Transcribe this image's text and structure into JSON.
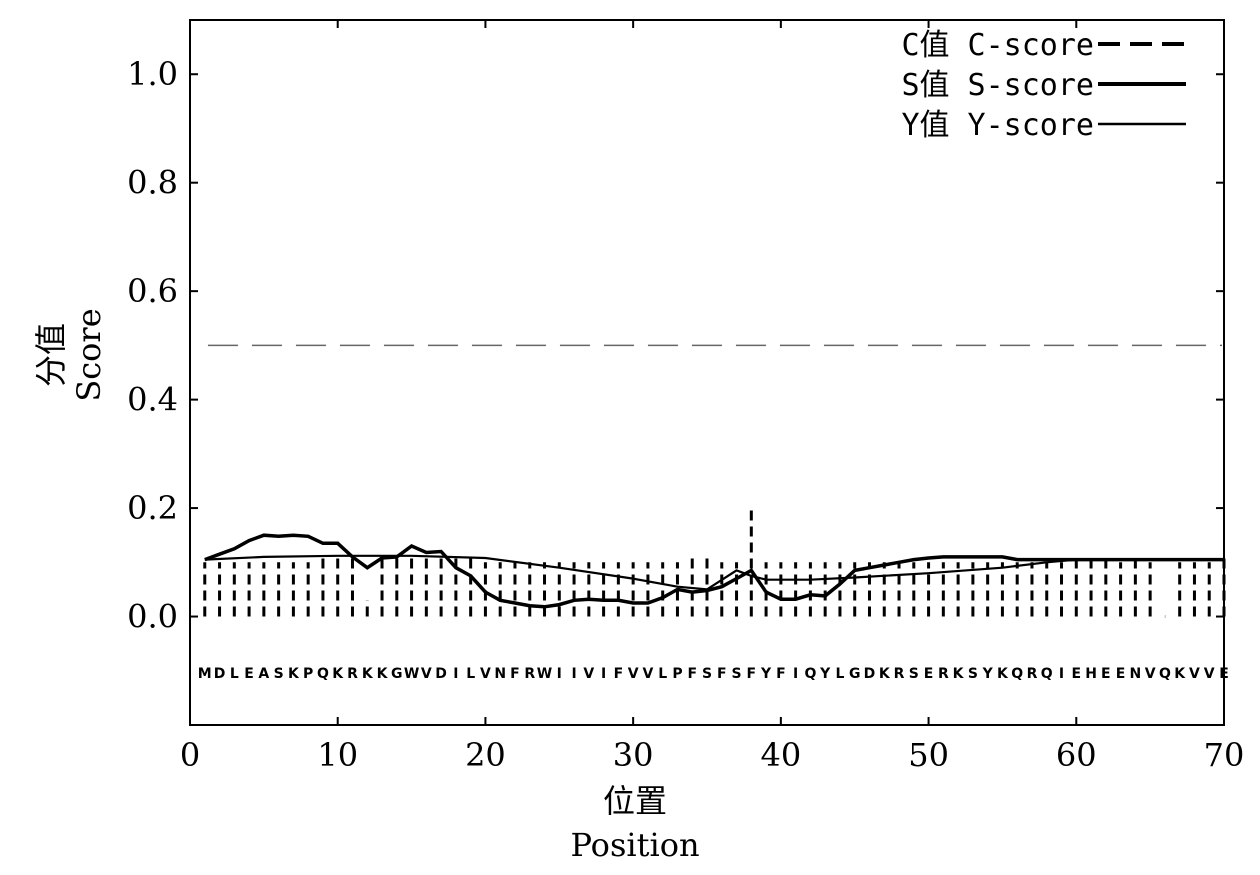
{
  "chart_data": {
    "type": "line",
    "xlabel_cn": "位置",
    "xlabel_en": "Position",
    "ylabel_cn": "分值",
    "ylabel_en": "Score",
    "xlim": [
      0,
      70
    ],
    "ylim": [
      -0.2,
      1.1
    ],
    "xticks": [
      0,
      10,
      20,
      30,
      40,
      50,
      60,
      70
    ],
    "xtick_labels": [
      "0",
      "10",
      "20",
      "30",
      "40",
      "50",
      "60",
      "70"
    ],
    "yticks": [
      0.0,
      0.2,
      0.4,
      0.6,
      0.8,
      1.0
    ],
    "ytick_labels": [
      "0.0",
      "0.2",
      "0.4",
      "0.6",
      "0.8",
      "1.0"
    ],
    "threshold": 0.5,
    "legend_position": "top-right",
    "legend": [
      {
        "label": "C值 C-score",
        "style": "dashed"
      },
      {
        "label": "S值 S-score",
        "style": "solid"
      },
      {
        "label": "Y值 Y-score",
        "style": "solid-thin"
      }
    ],
    "sequence": [
      "M",
      "D",
      "L",
      "E",
      "A",
      "S",
      "K",
      "P",
      "Q",
      "K",
      "R",
      "K",
      "K",
      "G",
      "W",
      "V",
      "D",
      "I",
      "L",
      "V",
      "N",
      "F",
      "R",
      "W",
      "I",
      "I",
      "V",
      "I",
      "F",
      "V",
      "V",
      "L",
      "P",
      "F",
      "S",
      "F",
      "S",
      "F",
      "Y",
      "F",
      "I",
      "Q",
      "Y",
      "L",
      "G",
      "D",
      "K",
      "R",
      "S",
      "E",
      "R",
      "K",
      "S",
      "Y",
      "K",
      "Q",
      "R",
      "Q",
      "I",
      "E",
      "H",
      "E",
      "E",
      "N",
      "V",
      "Q",
      "K",
      "V",
      "V",
      "E"
    ],
    "c_score": [
      0.1,
      0.1,
      0.1,
      0.1,
      0.1,
      0.1,
      0.1,
      0.1,
      0.11,
      0.11,
      0.11,
      0.03,
      0.11,
      0.11,
      0.11,
      0.11,
      0.11,
      0.11,
      0.11,
      0.1,
      0.1,
      0.1,
      0.1,
      0.1,
      0.1,
      0.1,
      0.1,
      0.1,
      0.1,
      0.1,
      0.1,
      0.1,
      0.1,
      0.11,
      0.11,
      0.1,
      0.1,
      0.2,
      0.1,
      0.1,
      0.1,
      0.1,
      0.1,
      0.1,
      0.1,
      0.1,
      0.1,
      0.1,
      0.1,
      0.1,
      0.1,
      0.1,
      0.1,
      0.1,
      0.1,
      0.1,
      0.1,
      0.1,
      0.1,
      0.11,
      0.11,
      0.11,
      0.1,
      0.11,
      0.1,
      0.0,
      0.1,
      0.1,
      0.1,
      0.11
    ],
    "s_score": [
      [
        1,
        0.105
      ],
      [
        2,
        0.115
      ],
      [
        3,
        0.125
      ],
      [
        4,
        0.14
      ],
      [
        5,
        0.15
      ],
      [
        6,
        0.148
      ],
      [
        7,
        0.15
      ],
      [
        8,
        0.148
      ],
      [
        9,
        0.135
      ],
      [
        10,
        0.135
      ],
      [
        11,
        0.11
      ],
      [
        12,
        0.09
      ],
      [
        13,
        0.108
      ],
      [
        14,
        0.11
      ],
      [
        15,
        0.13
      ],
      [
        16,
        0.118
      ],
      [
        17,
        0.12
      ],
      [
        18,
        0.09
      ],
      [
        19,
        0.075
      ],
      [
        20,
        0.045
      ],
      [
        21,
        0.03
      ],
      [
        22,
        0.025
      ],
      [
        23,
        0.02
      ],
      [
        24,
        0.018
      ],
      [
        25,
        0.022
      ],
      [
        26,
        0.03
      ],
      [
        27,
        0.032
      ],
      [
        28,
        0.03
      ],
      [
        29,
        0.03
      ],
      [
        30,
        0.025
      ],
      [
        31,
        0.025
      ],
      [
        32,
        0.035
      ],
      [
        33,
        0.05
      ],
      [
        34,
        0.045
      ],
      [
        35,
        0.048
      ],
      [
        36,
        0.055
      ],
      [
        37,
        0.07
      ],
      [
        38,
        0.085
      ],
      [
        39,
        0.045
      ],
      [
        40,
        0.032
      ],
      [
        41,
        0.032
      ],
      [
        42,
        0.04
      ],
      [
        43,
        0.038
      ],
      [
        44,
        0.06
      ],
      [
        45,
        0.085
      ],
      [
        46,
        0.09
      ],
      [
        47,
        0.095
      ],
      [
        48,
        0.1
      ],
      [
        49,
        0.105
      ],
      [
        50,
        0.108
      ],
      [
        51,
        0.11
      ],
      [
        52,
        0.11
      ],
      [
        53,
        0.11
      ],
      [
        54,
        0.11
      ],
      [
        55,
        0.11
      ],
      [
        56,
        0.105
      ],
      [
        57,
        0.105
      ],
      [
        58,
        0.105
      ],
      [
        59,
        0.105
      ],
      [
        60,
        0.105
      ],
      [
        62,
        0.105
      ],
      [
        64,
        0.105
      ],
      [
        66,
        0.105
      ],
      [
        68,
        0.105
      ],
      [
        70,
        0.105
      ]
    ],
    "y_score": [
      [
        1,
        0.105
      ],
      [
        5,
        0.11
      ],
      [
        10,
        0.112
      ],
      [
        15,
        0.112
      ],
      [
        20,
        0.108
      ],
      [
        25,
        0.09
      ],
      [
        30,
        0.07
      ],
      [
        33,
        0.055
      ],
      [
        35,
        0.05
      ],
      [
        37,
        0.085
      ],
      [
        38,
        0.075
      ],
      [
        39,
        0.068
      ],
      [
        42,
        0.068
      ],
      [
        45,
        0.072
      ],
      [
        50,
        0.08
      ],
      [
        55,
        0.09
      ],
      [
        58,
        0.1
      ],
      [
        60,
        0.105
      ],
      [
        65,
        0.105
      ],
      [
        70,
        0.105
      ]
    ]
  }
}
